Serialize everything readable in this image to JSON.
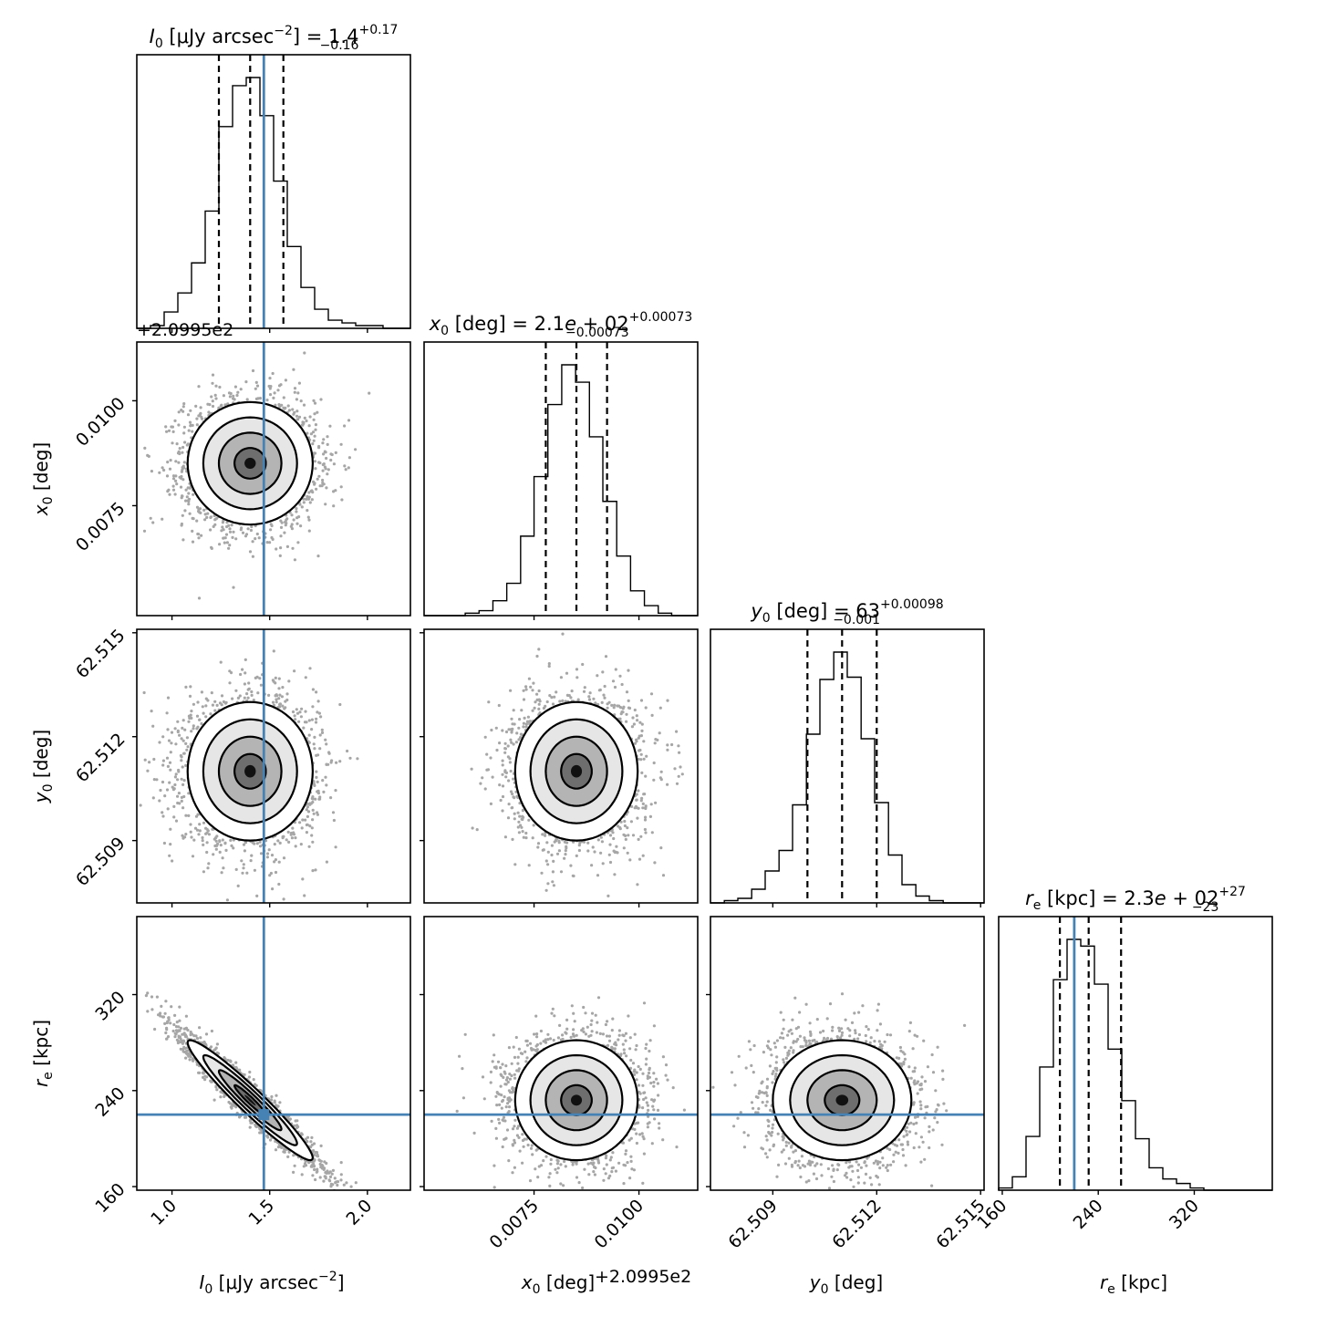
{
  "chart_data": {
    "type": "corner",
    "parameters": [
      {
        "key": "I0",
        "label_main": "I",
        "label_sub": "0",
        "label_rest": " [μJy arcsec",
        "label_sup": "−2",
        "label_end": "]"
      },
      {
        "key": "x0",
        "label_main": "x",
        "label_sub": "0",
        "label_rest": " [deg]"
      },
      {
        "key": "y0",
        "label_main": "y",
        "label_sub": "0",
        "label_rest": " [deg]"
      },
      {
        "key": "re",
        "label_main": "r",
        "label_sub": "e",
        "label_rest": " [kpc]"
      }
    ],
    "titles": [
      {
        "main": "I",
        "sub": "0",
        "rest": " [μJy arcsec",
        "sup": "−2",
        "end": "] = 1.4",
        "up": "+0.17",
        "down": "−0.16"
      },
      {
        "main": "x",
        "sub": "0",
        "rest": " [deg] = 2.1",
        "italic_e": "e",
        "end": " + 02",
        "up": "+0.00073",
        "down": "−0.00073"
      },
      {
        "main": "y",
        "sub": "0",
        "rest": " [deg] = 63",
        "up": "+0.00098",
        "down": "−0.001"
      },
      {
        "main": "r",
        "sub": "e",
        "rest": " [kpc] = 2.3",
        "italic_e": "e",
        "end": " + 02",
        "up": "+27",
        "down": "−23"
      }
    ],
    "ranges": {
      "I0": [
        0.82,
        2.22
      ],
      "x0": [
        0.00488,
        0.0114
      ],
      "y0": [
        62.5072,
        62.5151
      ],
      "re": [
        157,
        385
      ]
    },
    "ticks": {
      "I0": {
        "values": [
          1.0,
          1.5,
          2.0
        ],
        "labels": [
          "1.0",
          "1.5",
          "2.0"
        ]
      },
      "x0": {
        "values": [
          0.0075,
          0.01
        ],
        "labels": [
          "0.0075",
          "0.0100"
        ]
      },
      "y0": {
        "values": [
          62.509,
          62.512,
          62.515
        ],
        "labels": [
          "62.509",
          "62.512",
          "62.515"
        ]
      },
      "re": {
        "values": [
          160,
          240,
          320
        ],
        "labels": [
          "160",
          "240",
          "320"
        ]
      }
    },
    "axis_offset_text": "+2.0995e2",
    "truths": {
      "I0": 1.47,
      "re": 220
    },
    "quantiles": {
      "I0": [
        1.24,
        1.4,
        1.57
      ],
      "x0": [
        0.00778,
        0.00851,
        0.00924
      ],
      "y0": [
        62.51,
        62.511,
        62.512
      ],
      "re": [
        208,
        232,
        259
      ]
    },
    "histograms": {
      "I0": {
        "edges": [
          0.82,
          0.89,
          0.96,
          1.03,
          1.1,
          1.17,
          1.24,
          1.31,
          1.38,
          1.45,
          1.52,
          1.59,
          1.66,
          1.73,
          1.8,
          1.87,
          1.94,
          2.01,
          2.08,
          2.15,
          2.22
        ],
        "counts": [
          0,
          1,
          6,
          13,
          24,
          43,
          74,
          89,
          92,
          78,
          54,
          30,
          15,
          7,
          3,
          2,
          1,
          1,
          0,
          0
        ]
      },
      "x0": {
        "edges": [
          0.00488,
          0.00521,
          0.00554,
          0.00586,
          0.00619,
          0.00652,
          0.00685,
          0.00718,
          0.0075,
          0.00783,
          0.00816,
          0.00849,
          0.00882,
          0.00914,
          0.00947,
          0.0098,
          0.01013,
          0.01046,
          0.01078,
          0.01111,
          0.0114
        ],
        "counts": [
          0,
          0,
          0,
          1,
          2,
          6,
          13,
          32,
          56,
          85,
          101,
          94,
          72,
          46,
          24,
          10,
          4,
          1,
          0,
          0
        ]
      },
      "y0": {
        "edges": [
          62.5072,
          62.5076,
          62.50799,
          62.50839,
          62.50878,
          62.50918,
          62.50957,
          62.50997,
          62.51036,
          62.51076,
          62.51115,
          62.51155,
          62.51194,
          62.51234,
          62.51273,
          62.51313,
          62.51352,
          62.51392,
          62.51431,
          62.51471,
          62.5151
        ],
        "counts": [
          0,
          1,
          2,
          6,
          14,
          23,
          43,
          74,
          98,
          110,
          99,
          72,
          44,
          21,
          8,
          3,
          1,
          0,
          0,
          0
        ]
      },
      "re": {
        "edges": [
          157,
          168.4,
          179.8,
          191.2,
          202.6,
          214,
          225.4,
          236.8,
          248.2,
          259.6,
          271,
          282.4,
          293.8,
          305.2,
          316.6,
          328,
          339.4,
          350.8,
          362.2,
          373.6,
          385
        ],
        "counts": [
          1,
          6,
          24,
          55,
          94,
          112,
          109,
          92,
          63,
          40,
          23,
          10,
          5,
          3,
          1,
          0,
          0,
          0,
          0,
          0
        ]
      }
    },
    "scatter_shapes": {
      "I0|x0": {
        "mean": [
          1.4,
          0.00851
        ],
        "sd": [
          0.16,
          0.00073
        ],
        "rho": 0
      },
      "I0|y0": {
        "mean": [
          1.4,
          62.511
        ],
        "sd": [
          0.16,
          0.001
        ],
        "rho": 0
      },
      "x0|y0": {
        "mean": [
          0.00851,
          62.511
        ],
        "sd": [
          0.00073,
          0.001
        ],
        "rho": 0
      },
      "I0|re": {
        "mean": [
          1.4,
          232
        ],
        "sd": [
          0.16,
          25
        ],
        "rho": -0.96
      },
      "x0|re": {
        "mean": [
          0.00851,
          232
        ],
        "sd": [
          0.00073,
          25
        ],
        "rho": 0
      },
      "y0|re": {
        "mean": [
          62.511,
          232
        ],
        "sd": [
          0.001,
          25
        ],
        "rho": 0
      }
    },
    "grid": false,
    "legend": "none",
    "colors": {
      "points": "#000000",
      "truth": "#4682b4",
      "contour": "#000000",
      "background": "#ffffff"
    }
  }
}
